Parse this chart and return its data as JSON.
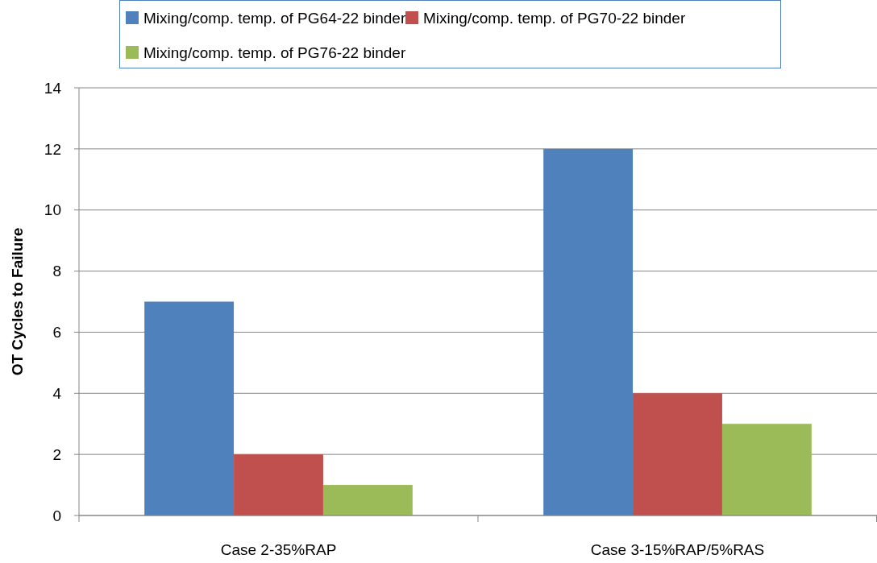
{
  "chart_data": {
    "type": "bar",
    "ylabel": "OT Cycles to Failure",
    "categories": [
      "Case 2-35%RAP",
      "Case 3-15%RAP/5%RAS"
    ],
    "series": [
      {
        "name": "Mixing/comp. temp. of PG64-22 binder",
        "color": "#4f81bd",
        "values": [
          7,
          12
        ]
      },
      {
        "name": "Mixing/comp. temp. of PG70-22 binder",
        "color": "#c0504d",
        "values": [
          2,
          4
        ]
      },
      {
        "name": "Mixing/comp. temp. of PG76-22 binder",
        "color": "#9bbb59",
        "values": [
          1,
          3
        ]
      }
    ],
    "ylim": [
      0,
      14
    ],
    "yticks": [
      0,
      2,
      4,
      6,
      8,
      10,
      12,
      14
    ],
    "grid": "y",
    "legend": "top"
  }
}
